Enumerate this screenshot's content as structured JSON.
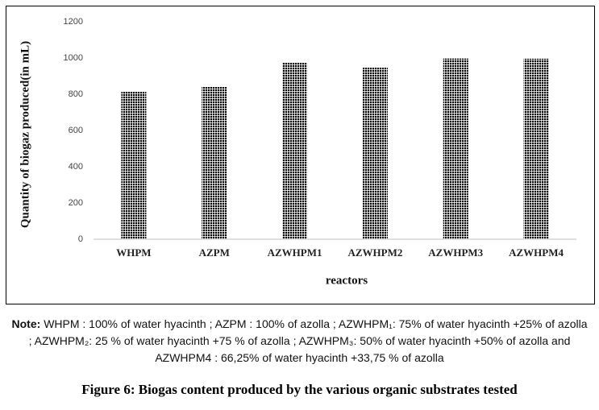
{
  "chart_data": {
    "type": "bar",
    "x_label": "reactors",
    "y_label": "Quantity of biogaz produced(in mL)",
    "categories": [
      "WHPM",
      "AZPM",
      "AZWHPM1",
      "AZWHPM2",
      "AZWHPM3",
      "AZWHPM4"
    ],
    "values": [
      813,
      842,
      975,
      948,
      997,
      996
    ],
    "color": "#000000",
    "ylim": [
      0,
      1200
    ],
    "yticks": [
      0,
      200,
      400,
      600,
      800,
      1000,
      1200
    ]
  },
  "note": {
    "label": "Note:",
    "text": "WHPM : 100% of water hyacinth ; AZPM : 100% of azolla ; AZWHPM₁: 75% of water hyacinth +25% of azolla ; AZWHPM₂: 25 % of water hyacinth +75 % of azolla ; AZWHPM₃: 50% of water hyacinth +50% of azolla and AZWHPM4 : 66,25% of water hyacinth +33,75 % of azolla"
  },
  "caption": "Figure 6: Biogas content produced by the various organic substrates tested"
}
